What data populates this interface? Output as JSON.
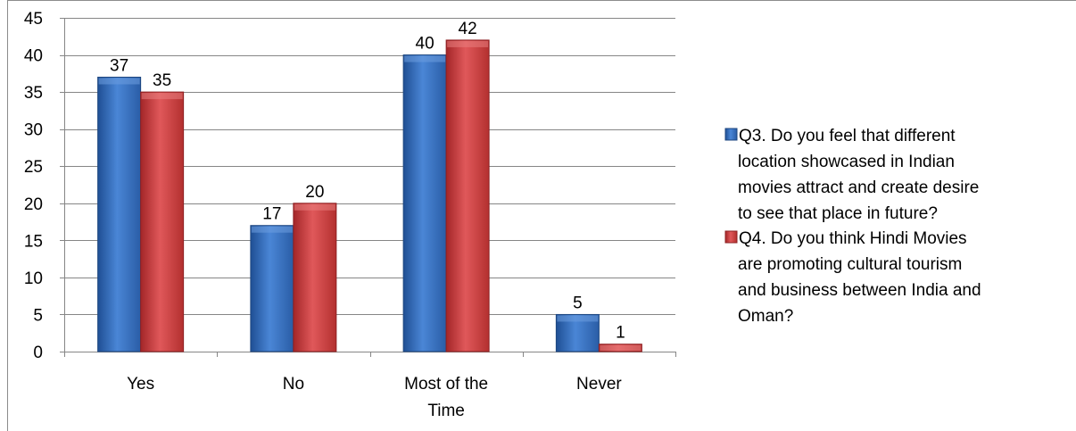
{
  "chart_data": {
    "type": "bar",
    "categories": [
      "Yes",
      "No",
      "Most of the Time",
      "Never"
    ],
    "category_lines": [
      [
        "Yes"
      ],
      [
        "No"
      ],
      [
        "Most of the",
        "Time"
      ],
      [
        "Never"
      ]
    ],
    "series": [
      {
        "name": "Q3. Do you feel that different location showcased in Indian movies attract and create desire to see that place in future?",
        "legend_lines": [
          "Q3. Do you feel that different",
          "location showcased in Indian",
          "movies attract and create desire",
          "to see that place in future?"
        ],
        "values": [
          37,
          17,
          40,
          5
        ],
        "color": "#2f69b8"
      },
      {
        "name": "Q4. Do you think Hindi Movies are promoting cultural tourism and business between India and Oman?",
        "legend_lines": [
          "Q4. Do you think Hindi Movies",
          "are promoting cultural tourism",
          "and business between India and",
          "Oman?"
        ],
        "values": [
          35,
          20,
          42,
          1
        ],
        "color": "#c6393a"
      }
    ],
    "ylim": [
      0,
      45
    ],
    "yticks": [
      0,
      5,
      10,
      15,
      20,
      25,
      30,
      35,
      40,
      45
    ],
    "grid": true,
    "data_labels": true,
    "legend_position": "right"
  }
}
